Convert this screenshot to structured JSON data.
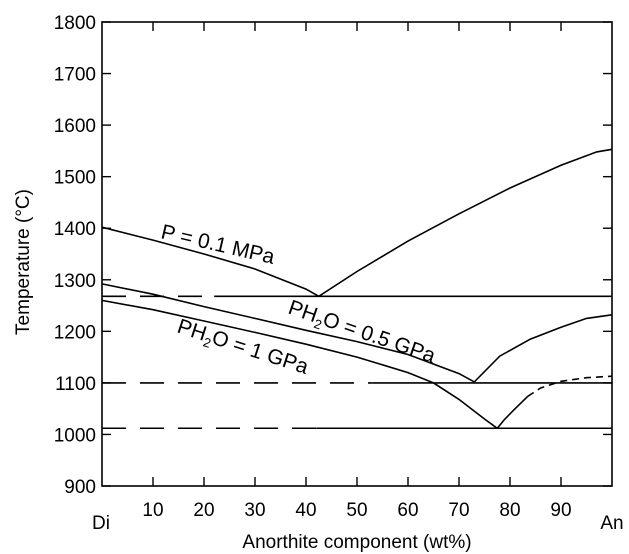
{
  "chart_data": {
    "type": "line",
    "title": "",
    "xlabel": "Anorthite component (wt%)",
    "ylabel": "Temperature (°C)",
    "xlim": [
      0,
      100
    ],
    "ylim": [
      900,
      1800
    ],
    "x_ticks": [
      10,
      20,
      30,
      40,
      50,
      60,
      70,
      80,
      90
    ],
    "x_tick_labels": [
      "10",
      "20",
      "30",
      "40",
      "50",
      "60",
      "70",
      "80",
      "90"
    ],
    "x_end_labels": {
      "left": "Di",
      "right": "An"
    },
    "y_ticks": [
      900,
      1000,
      1100,
      1200,
      1300,
      1400,
      1500,
      1600,
      1700,
      1800
    ],
    "y_tick_labels": [
      "900",
      "1000",
      "1100",
      "1200",
      "1300",
      "1400",
      "1500",
      "1600",
      "1700",
      "1800"
    ],
    "grid": false,
    "series": [
      {
        "name": "P = 0.1 MPa",
        "label_parts": {
          "pre": "P = 0.1 MPa",
          "sub": "",
          "post": ""
        },
        "liquidus_di": [
          [
            0,
            1402
          ],
          [
            10,
            1377
          ],
          [
            20,
            1350
          ],
          [
            30,
            1321
          ],
          [
            40,
            1282
          ],
          [
            42.5,
            1268
          ]
        ],
        "liquidus_an": [
          [
            42.5,
            1268
          ],
          [
            50,
            1316
          ],
          [
            60,
            1375
          ],
          [
            70,
            1428
          ],
          [
            80,
            1478
          ],
          [
            90,
            1522
          ],
          [
            97,
            1548
          ],
          [
            100,
            1553
          ]
        ],
        "solidus_temp": 1268,
        "solidus_extrapolated_to": 22
      },
      {
        "name": "PH2O = 0.5 GPa",
        "label_parts": {
          "pre": "PH",
          "sub": "2",
          "post": "O = 0.5 GPa"
        },
        "liquidus_di": [
          [
            0,
            1292
          ],
          [
            10,
            1272
          ],
          [
            20,
            1248
          ],
          [
            30,
            1225
          ],
          [
            40,
            1202
          ],
          [
            50,
            1180
          ],
          [
            60,
            1155
          ],
          [
            70,
            1118
          ],
          [
            73,
            1102
          ]
        ],
        "liquidus_an": [
          [
            73,
            1102
          ],
          [
            78,
            1152
          ],
          [
            84,
            1185
          ],
          [
            90,
            1208
          ],
          [
            95,
            1225
          ],
          [
            100,
            1232
          ]
        ],
        "solidus_temp": 1100,
        "solidus_extrapolated_to": 53
      },
      {
        "name": "PH2O = 1 GPa",
        "label_parts": {
          "pre": "PH",
          "sub": "2",
          "post": "O = 1 GPa"
        },
        "liquidus_di": [
          [
            0,
            1260
          ],
          [
            10,
            1242
          ],
          [
            20,
            1220
          ],
          [
            30,
            1198
          ],
          [
            40,
            1175
          ],
          [
            50,
            1150
          ],
          [
            60,
            1120
          ],
          [
            65,
            1100
          ],
          [
            70,
            1068
          ],
          [
            75,
            1030
          ],
          [
            77.5,
            1012
          ]
        ],
        "liquidus_an": [
          [
            77.5,
            1012
          ],
          [
            79,
            1030
          ],
          [
            81,
            1050
          ],
          [
            83.5,
            1074
          ],
          [
            86,
            1090
          ],
          [
            90,
            1103
          ],
          [
            95,
            1110
          ],
          [
            100,
            1113
          ]
        ],
        "liquidus_an_dashed_from": 85,
        "solidus_temp": 1012,
        "solidus_extrapolated_to": 42
      }
    ]
  }
}
